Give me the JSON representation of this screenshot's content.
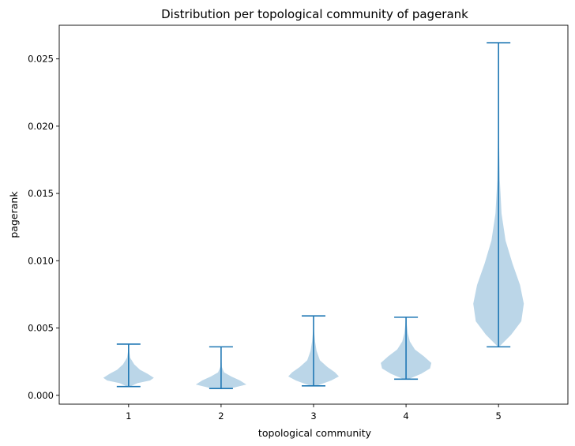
{
  "chart_data": {
    "type": "violin",
    "title": "Distribution per topological community of pagerank",
    "xlabel": "topological community",
    "ylabel": "pagerank",
    "categories": [
      "1",
      "2",
      "3",
      "4",
      "5"
    ],
    "ylim": [
      -0.00066,
      0.0275
    ],
    "yticks": [
      0.0,
      0.005,
      0.01,
      0.015,
      0.02,
      0.025
    ],
    "ytick_labels": [
      "0.000",
      "0.005",
      "0.010",
      "0.015",
      "0.020",
      "0.025"
    ],
    "grid": false,
    "legend": "none",
    "colors": {
      "body": "#1f77b4",
      "body_alpha": 0.3,
      "lines": "#1f77b4"
    },
    "violins": [
      {
        "category": "1",
        "min": 0.00065,
        "max": 0.0038,
        "profile": [
          [
            0.00065,
            0.05
          ],
          [
            0.0009,
            0.35
          ],
          [
            0.0011,
            0.85
          ],
          [
            0.0013,
            1.0
          ],
          [
            0.0016,
            0.75
          ],
          [
            0.0019,
            0.45
          ],
          [
            0.0023,
            0.22
          ],
          [
            0.0028,
            0.06
          ],
          [
            0.0033,
            0.02
          ],
          [
            0.0038,
            0.01
          ]
        ]
      },
      {
        "category": "2",
        "min": 0.0005,
        "max": 0.0036,
        "profile": [
          [
            0.0005,
            0.35
          ],
          [
            0.0008,
            1.0
          ],
          [
            0.0011,
            0.75
          ],
          [
            0.0014,
            0.4
          ],
          [
            0.0017,
            0.12
          ],
          [
            0.0021,
            0.03
          ],
          [
            0.0028,
            0.01
          ],
          [
            0.0036,
            0.005
          ]
        ]
      },
      {
        "category": "3",
        "min": 0.0007,
        "max": 0.0059,
        "profile": [
          [
            0.0007,
            0.12
          ],
          [
            0.0011,
            0.7
          ],
          [
            0.0014,
            1.0
          ],
          [
            0.0017,
            0.85
          ],
          [
            0.0021,
            0.55
          ],
          [
            0.0026,
            0.25
          ],
          [
            0.0033,
            0.12
          ],
          [
            0.004,
            0.06
          ],
          [
            0.0048,
            0.02
          ],
          [
            0.0059,
            0.005
          ]
        ]
      },
      {
        "category": "4",
        "min": 0.0012,
        "max": 0.0058,
        "profile": [
          [
            0.0012,
            0.1
          ],
          [
            0.0016,
            0.6
          ],
          [
            0.002,
            0.95
          ],
          [
            0.0024,
            1.0
          ],
          [
            0.0029,
            0.7
          ],
          [
            0.0034,
            0.35
          ],
          [
            0.004,
            0.15
          ],
          [
            0.0046,
            0.07
          ],
          [
            0.0052,
            0.03
          ],
          [
            0.0058,
            0.01
          ]
        ]
      },
      {
        "category": "5",
        "min": 0.0036,
        "max": 0.0262,
        "profile": [
          [
            0.0036,
            0.02
          ],
          [
            0.0045,
            0.5
          ],
          [
            0.0055,
            0.9
          ],
          [
            0.0068,
            1.0
          ],
          [
            0.0082,
            0.85
          ],
          [
            0.0098,
            0.55
          ],
          [
            0.0115,
            0.28
          ],
          [
            0.0135,
            0.12
          ],
          [
            0.016,
            0.05
          ],
          [
            0.019,
            0.02
          ],
          [
            0.022,
            0.01
          ],
          [
            0.0262,
            0.005
          ]
        ]
      }
    ]
  }
}
